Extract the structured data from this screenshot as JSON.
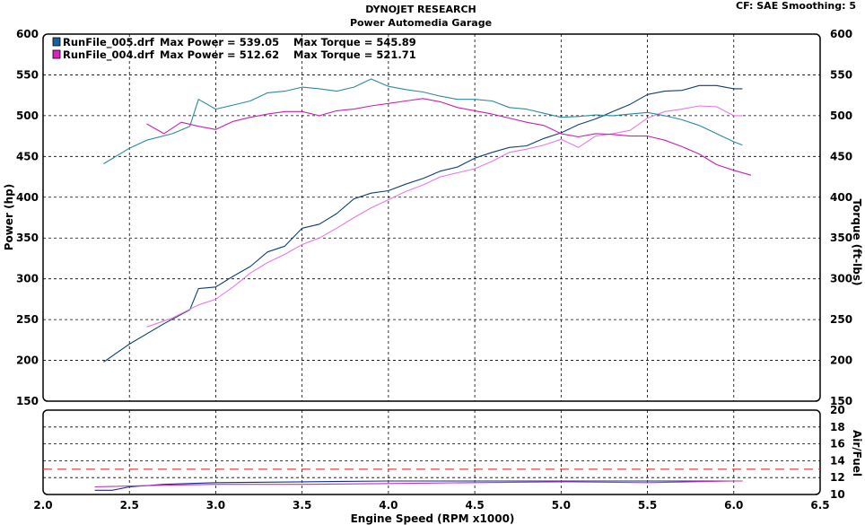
{
  "header": {
    "title": "DYNOJET RESEARCH",
    "subtitle": "Power Automedia Garage",
    "cf_label": "CF: SAE  Smoothing: 5"
  },
  "legend": [
    {
      "run": "RunFile_005.drf",
      "power": "Max Power = 539.05",
      "torque": "Max Torque = 545.89",
      "color": "#1a5fa0"
    },
    {
      "run": "RunFile_004.drf",
      "power": "Max Power = 512.62",
      "torque": "Max Torque = 521.71",
      "color": "#e020c0"
    }
  ],
  "chart_data": [
    {
      "type": "line",
      "title": "DYNOJET RESEARCH",
      "subtitle": "Power Automedia Garage",
      "xlabel": "Engine Speed (RPM x1000)",
      "ylabel": "Power (hp)",
      "y2label": "Torque (ft-lbs)",
      "xlim": [
        2.0,
        6.5
      ],
      "ylim": [
        150,
        600
      ],
      "y2lim": [
        150,
        600
      ],
      "x_ticks": [
        "2.0",
        "2.5",
        "3.0",
        "3.5",
        "4.0",
        "4.5",
        "5.0",
        "5.5",
        "6.0",
        "6.5"
      ],
      "y_ticks": [
        "150",
        "200",
        "250",
        "300",
        "350",
        "400",
        "450",
        "500",
        "550",
        "600"
      ],
      "grid": true,
      "legend_position": "top-left",
      "series": [
        {
          "name": "RunFile_005.drf",
          "kind": "power",
          "axis": "left",
          "color": "#0d3f73",
          "x": [
            2.35,
            2.5,
            2.7,
            2.85,
            2.9,
            3.0,
            3.1,
            3.2,
            3.3,
            3.4,
            3.5,
            3.6,
            3.7,
            3.8,
            3.9,
            4.0,
            4.1,
            4.2,
            4.3,
            4.4,
            4.5,
            4.6,
            4.7,
            4.8,
            4.9,
            5.0,
            5.1,
            5.2,
            5.3,
            5.4,
            5.5,
            5.6,
            5.7,
            5.8,
            5.9,
            6.0,
            6.05
          ],
          "y": [
            198,
            220,
            245,
            262,
            288,
            290,
            303,
            315,
            333,
            340,
            362,
            367,
            380,
            398,
            405,
            408,
            416,
            423,
            432,
            437,
            448,
            455,
            461,
            463,
            472,
            479,
            489,
            496,
            505,
            514,
            526,
            530,
            531,
            537,
            537,
            533,
            533
          ]
        },
        {
          "name": "RunFile_004.drf",
          "kind": "power",
          "axis": "left",
          "color": "#e878e8",
          "x": [
            2.6,
            2.75,
            2.9,
            3.0,
            3.1,
            3.2,
            3.3,
            3.4,
            3.5,
            3.6,
            3.7,
            3.8,
            3.9,
            4.0,
            4.1,
            4.2,
            4.3,
            4.4,
            4.5,
            4.6,
            4.7,
            4.8,
            4.9,
            5.0,
            5.1,
            5.2,
            5.3,
            5.4,
            5.5,
            5.6,
            5.7,
            5.8,
            5.9,
            6.0,
            6.05
          ],
          "y": [
            241,
            252,
            268,
            275,
            290,
            307,
            320,
            330,
            342,
            350,
            362,
            375,
            387,
            397,
            407,
            415,
            425,
            430,
            435,
            444,
            455,
            459,
            464,
            471,
            461,
            475,
            478,
            482,
            497,
            505,
            508,
            512,
            511,
            500,
            500
          ]
        },
        {
          "name": "RunFile_005.drf",
          "kind": "torque",
          "axis": "right",
          "color": "#2a8aa0",
          "x": [
            2.35,
            2.5,
            2.6,
            2.75,
            2.85,
            2.9,
            3.0,
            3.1,
            3.2,
            3.3,
            3.4,
            3.5,
            3.6,
            3.7,
            3.8,
            3.9,
            4.0,
            4.1,
            4.2,
            4.3,
            4.4,
            4.5,
            4.6,
            4.7,
            4.8,
            4.9,
            5.0,
            5.1,
            5.2,
            5.3,
            5.4,
            5.5,
            5.6,
            5.7,
            5.8,
            5.9,
            6.0,
            6.05
          ],
          "y": [
            441,
            460,
            470,
            478,
            487,
            520,
            508,
            513,
            518,
            528,
            530,
            535,
            533,
            530,
            535,
            545,
            536,
            532,
            529,
            524,
            520,
            520,
            518,
            510,
            508,
            503,
            498,
            499,
            501,
            500,
            502,
            504,
            500,
            495,
            488,
            478,
            468,
            464
          ]
        },
        {
          "name": "RunFile_004.drf",
          "kind": "torque",
          "axis": "right",
          "color": "#cc20b0",
          "x": [
            2.6,
            2.7,
            2.8,
            2.9,
            3.0,
            3.1,
            3.2,
            3.3,
            3.4,
            3.5,
            3.6,
            3.7,
            3.8,
            3.9,
            4.0,
            4.1,
            4.2,
            4.3,
            4.4,
            4.5,
            4.6,
            4.7,
            4.8,
            4.9,
            5.0,
            5.1,
            5.2,
            5.3,
            5.4,
            5.5,
            5.6,
            5.7,
            5.8,
            5.9,
            6.0,
            6.1
          ],
          "y": [
            490,
            478,
            492,
            487,
            483,
            493,
            498,
            502,
            505,
            505,
            500,
            506,
            508,
            512,
            515,
            518,
            521,
            517,
            510,
            506,
            502,
            497,
            492,
            488,
            478,
            474,
            478,
            477,
            475,
            475,
            470,
            462,
            453,
            440,
            433,
            427
          ]
        }
      ]
    },
    {
      "type": "line",
      "xlabel": "Engine Speed (RPM x1000)",
      "y2label": "Air/Fuel",
      "xlim": [
        2.0,
        6.5
      ],
      "ylim": [
        10,
        20
      ],
      "x_ticks": [
        "2.0",
        "2.5",
        "3.0",
        "3.5",
        "4.0",
        "4.5",
        "5.0",
        "5.5",
        "6.0",
        "6.5"
      ],
      "y_ticks": [
        "10",
        "12",
        "14",
        "16",
        "18",
        "20"
      ],
      "grid": true,
      "reference_line": {
        "y": 13,
        "color": "#e03030",
        "style": "dashed"
      },
      "series": [
        {
          "name": "RunFile_005.drf",
          "axis": "right",
          "color": "#1a2a9a",
          "x": [
            2.3,
            2.4,
            2.5,
            2.7,
            3.0,
            3.5,
            4.0,
            4.5,
            5.0,
            5.5,
            6.0,
            6.05
          ],
          "y": [
            10.5,
            10.5,
            10.9,
            11.2,
            11.4,
            11.5,
            11.6,
            11.6,
            11.6,
            11.6,
            11.6,
            11.6
          ]
        },
        {
          "name": "RunFile_004.drf",
          "axis": "right",
          "color": "#c030c0",
          "x": [
            2.3,
            2.5,
            2.7,
            3.0,
            3.5,
            4.0,
            4.5,
            5.0,
            5.5,
            6.0,
            6.05
          ],
          "y": [
            10.9,
            11.0,
            11.1,
            11.2,
            11.2,
            11.3,
            11.4,
            11.5,
            11.4,
            11.6,
            11.6
          ]
        }
      ]
    }
  ]
}
